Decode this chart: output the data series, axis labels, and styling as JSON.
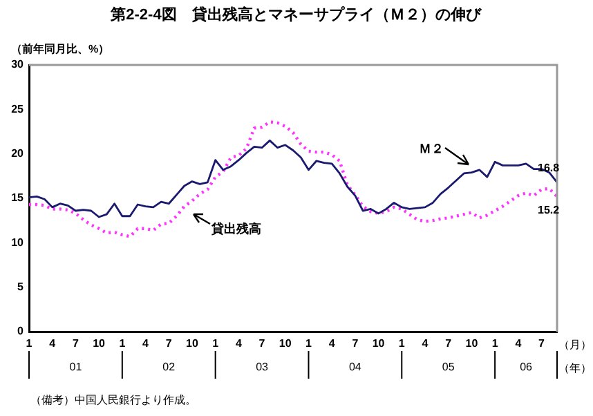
{
  "chart_data": {
    "type": "line",
    "title": "第2-2-4図　貸出残高とマネーサプライ（Ｍ２）の伸び",
    "ylabel": "（前年同月比、%）",
    "categories": [
      "1",
      null,
      null,
      "4",
      null,
      null,
      "7",
      null,
      null,
      "10",
      null,
      null,
      "1",
      null,
      null,
      "4",
      null,
      null,
      "7",
      null,
      null,
      "10",
      null,
      null,
      "1",
      null,
      null,
      "4",
      null,
      null,
      "7",
      null,
      null,
      "10",
      null,
      null,
      "1",
      null,
      null,
      "4",
      null,
      null,
      "7",
      null,
      null,
      "10",
      null,
      null,
      "1",
      null,
      null,
      "4",
      null,
      null,
      "7",
      null,
      null,
      "10",
      null,
      null,
      "1",
      null,
      null,
      "4",
      null,
      null,
      "7",
      null,
      null
    ],
    "series": [
      {
        "name": "Ｍ２",
        "color": "#1a1a6e",
        "line_style": "solid",
        "values": [
          15.1,
          15.2,
          14.9,
          14.0,
          14.4,
          14.2,
          13.6,
          13.7,
          13.6,
          12.9,
          13.2,
          14.4,
          13.0,
          13.0,
          14.3,
          14.1,
          14.0,
          14.6,
          14.4,
          15.4,
          16.4,
          16.9,
          16.6,
          16.8,
          19.3,
          18.2,
          18.6,
          19.3,
          20.1,
          20.8,
          20.7,
          21.5,
          20.7,
          21.0,
          20.4,
          19.6,
          18.2,
          19.2,
          19.0,
          18.9,
          17.8,
          16.3,
          15.3,
          13.6,
          13.8,
          13.3,
          13.8,
          14.5,
          14.0,
          13.8,
          13.9,
          14.0,
          14.5,
          15.5,
          16.2,
          17.0,
          17.8,
          17.9,
          18.2,
          17.4,
          19.1,
          18.7,
          18.7,
          18.7,
          18.9,
          18.3,
          18.3,
          17.9,
          16.8
        ],
        "value_labels": [
          null,
          null,
          null,
          null,
          null,
          null,
          null,
          null,
          null,
          null,
          null,
          null,
          null,
          null,
          null,
          null,
          null,
          null,
          null,
          null,
          null,
          null,
          null,
          null,
          null,
          null,
          null,
          null,
          null,
          null,
          null,
          null,
          null,
          null,
          null,
          null,
          null,
          null,
          null,
          null,
          null,
          null,
          null,
          null,
          null,
          null,
          null,
          null,
          null,
          null,
          null,
          null,
          null,
          null,
          null,
          null,
          null,
          null,
          null,
          null,
          null,
          null,
          null,
          null,
          null,
          null,
          null,
          null,
          "16.8"
        ]
      },
      {
        "name": "貸出残高",
        "color": "#ff33ff",
        "line_style": "dotted",
        "values": [
          14.3,
          14.3,
          14.2,
          13.8,
          13.8,
          13.7,
          13.3,
          12.6,
          12.0,
          11.6,
          11.1,
          11.2,
          10.9,
          10.7,
          11.6,
          11.6,
          11.4,
          12.1,
          12.2,
          13.0,
          14.1,
          14.7,
          15.5,
          16.0,
          17.4,
          18.0,
          19.6,
          19.8,
          20.6,
          22.9,
          23.0,
          23.6,
          23.5,
          23.1,
          22.4,
          21.1,
          20.3,
          20.2,
          20.2,
          19.9,
          19.2,
          16.5,
          15.4,
          14.1,
          13.5,
          13.3,
          13.5,
          14.0,
          13.8,
          13.2,
          12.6,
          12.4,
          12.5,
          12.7,
          12.8,
          13.0,
          13.2,
          13.4,
          12.8,
          13.1,
          13.6,
          14.1,
          14.7,
          15.3,
          15.6,
          15.3,
          16.0,
          16.1,
          15.2
        ],
        "value_labels": [
          null,
          null,
          null,
          null,
          null,
          null,
          null,
          null,
          null,
          null,
          null,
          null,
          null,
          null,
          null,
          null,
          null,
          null,
          null,
          null,
          null,
          null,
          null,
          null,
          null,
          null,
          null,
          null,
          null,
          null,
          null,
          null,
          null,
          null,
          null,
          null,
          null,
          null,
          null,
          null,
          null,
          null,
          null,
          null,
          null,
          null,
          null,
          null,
          null,
          null,
          null,
          null,
          null,
          null,
          null,
          null,
          null,
          null,
          null,
          null,
          null,
          null,
          null,
          null,
          null,
          null,
          null,
          null,
          "15.2"
        ]
      }
    ],
    "ylim": [
      0,
      30
    ],
    "yticks": [
      0,
      5,
      10,
      15,
      20,
      25,
      30
    ],
    "grid": false,
    "legend": false,
    "marker": "none",
    "annotations": [
      "01",
      "02",
      "03",
      "04",
      "05",
      "06",
      "（月）",
      "（年）",
      "（備考）中国人民銀行より作成。"
    ]
  }
}
